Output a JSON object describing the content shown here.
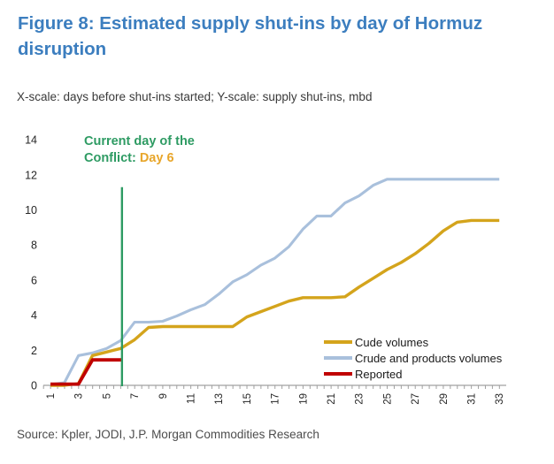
{
  "header": {
    "title": "Figure 8: Estimated supply shut-ins by day of Hormuz disruption",
    "subtitle": "X-scale: days before shut-ins started; Y-scale: supply shut-ins, mbd"
  },
  "annotation": {
    "line1": "Current day of the",
    "line2_prefix": "Conflict: ",
    "line2_highlight": "Day 6",
    "text_color": "#2E9B63",
    "highlight_color": "#E8A62B"
  },
  "footer": {
    "source": "Source: Kpler, JODI, J.P. Morgan Commodities Research"
  },
  "chart_data": {
    "type": "line",
    "title": "Estimated supply shut-ins by day of Hormuz disruption",
    "xlabel": "days before shut-ins started",
    "ylabel": "supply shut-ins, mbd",
    "xlim": [
      1,
      33
    ],
    "ylim": [
      0,
      14
    ],
    "yticks": [
      0,
      2,
      4,
      6,
      8,
      10,
      12,
      14
    ],
    "x_ticklabels": [
      "1",
      "3",
      "5",
      "7",
      "9",
      "11",
      "13",
      "15",
      "17",
      "19",
      "21",
      "23",
      "25",
      "27",
      "29",
      "31",
      "33"
    ],
    "x": [
      1,
      2,
      3,
      4,
      5,
      6,
      7,
      8,
      9,
      10,
      11,
      12,
      13,
      14,
      15,
      16,
      17,
      18,
      19,
      20,
      21,
      22,
      23,
      24,
      25,
      26,
      27,
      28,
      29,
      30,
      31,
      32,
      33
    ],
    "grid": false,
    "legend_position": "inside lower right",
    "series": [
      {
        "name": "Cude volumes",
        "color": "#D4A41C",
        "values": [
          0,
          0,
          0.1,
          1.7,
          1.9,
          2.1,
          2.6,
          3.3,
          3.35,
          3.35,
          3.35,
          3.35,
          3.35,
          3.35,
          3.9,
          4.2,
          4.5,
          4.8,
          5.0,
          5.0,
          5.0,
          5.05,
          5.6,
          6.1,
          6.6,
          7.0,
          7.5,
          8.1,
          8.8,
          9.3,
          9.4,
          9.4,
          9.4
        ]
      },
      {
        "name": "Crude and products volumes",
        "color": "#A9C0DC",
        "values": [
          0.05,
          0.15,
          1.7,
          1.85,
          2.1,
          2.55,
          3.6,
          3.6,
          3.65,
          3.95,
          4.3,
          4.6,
          5.2,
          5.9,
          6.3,
          6.85,
          7.25,
          7.9,
          8.9,
          9.65,
          9.65,
          10.4,
          10.8,
          11.4,
          11.75,
          11.75,
          11.75,
          11.75,
          11.75,
          11.75,
          11.75,
          11.75,
          11.75
        ]
      },
      {
        "name": "Reported",
        "color": "#C00000",
        "x": [
          1,
          2,
          3,
          4,
          5,
          6.15
        ],
        "values": [
          0.07,
          0.07,
          0.07,
          1.45,
          1.45,
          1.45
        ]
      }
    ],
    "marker_line": {
      "x": 6.1,
      "y_top": 11.3,
      "color": "#2E9B63",
      "label": "Current day of the Conflict: Day 6"
    },
    "axis_color": "#A0A0A0",
    "tick_label_color": "#262626"
  }
}
